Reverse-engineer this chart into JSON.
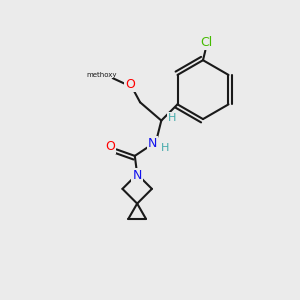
{
  "background_color": "#ebebeb",
  "bond_color": "#1a1a1a",
  "bond_width": 1.5,
  "figsize": [
    3.0,
    3.0
  ],
  "dpi": 100,
  "atoms": {
    "Cl": {
      "color": "#44bb00",
      "fontsize": 9
    },
    "O": {
      "color": "#ff0000",
      "fontsize": 9
    },
    "N": {
      "color": "#1111ee",
      "fontsize": 9
    },
    "H": {
      "color": "#44aaaa",
      "fontsize": 8
    }
  }
}
